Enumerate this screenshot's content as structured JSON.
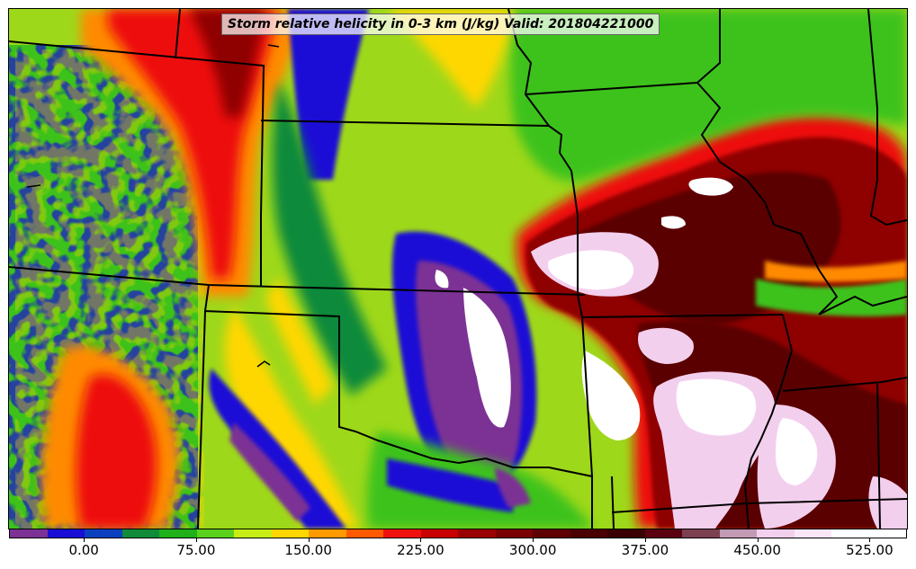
{
  "title": "Storm relative helicity in 0-3 km (J/kg) Valid: 201804221000",
  "colorbar": {
    "levels": [
      -50,
      -25,
      0,
      25,
      50,
      75,
      100,
      125,
      150,
      175,
      200,
      225,
      250,
      275,
      300,
      325,
      350,
      375,
      400,
      425,
      450,
      475,
      500,
      525,
      550
    ],
    "colors": [
      "#7b3294",
      "#1a0dd6",
      "#0a3fbf",
      "#118a3a",
      "#1fb01a",
      "#5ad11c",
      "#c6ee14",
      "#ffd700",
      "#ff9a00",
      "#ff5a00",
      "#ef1010",
      "#c80000",
      "#9b0000",
      "#7a0000",
      "#5e0000",
      "#4a0000",
      "#3a0000",
      "#5b0010",
      "#7c4050",
      "#c39ab4",
      "#f3cfee",
      "#fbe6f8",
      "#ffffff",
      "#ffffff"
    ],
    "tick_labels": [
      "0.00",
      "75.00",
      "150.00",
      "225.00",
      "300.00",
      "375.00",
      "450.00",
      "525.00"
    ],
    "tick_values": [
      0,
      75,
      150,
      225,
      300,
      375,
      450,
      525
    ]
  },
  "palette": {
    "purple": "#7b3294",
    "blue": "#1a0dd6",
    "darkgreen": "#118a3a",
    "green": "#3cc21a",
    "lime": "#b8e81a",
    "yellow": "#ffd700",
    "orange": "#ff8a00",
    "red": "#ee1111",
    "darkred": "#8f0000",
    "maroon": "#5a0000",
    "pink": "#f3cfee",
    "white": "#ffffff"
  }
}
